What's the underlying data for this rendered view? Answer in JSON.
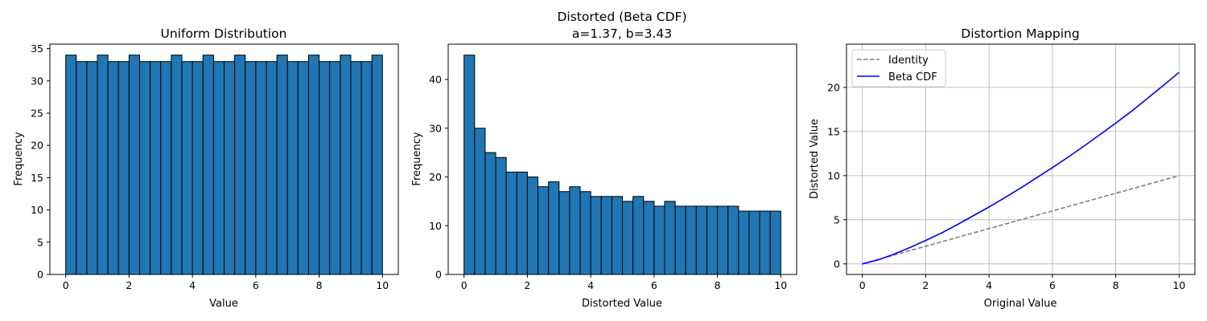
{
  "colors": {
    "bar_fill": "#1f77b4",
    "bar_edge": "#000000",
    "identity_line": "#808080",
    "beta_line": "#0000ff",
    "grid": "#b0b0b0"
  },
  "chart_data": [
    {
      "type": "bar",
      "title": "Uniform Distribution",
      "subtitle": "",
      "xlabel": "Value",
      "ylabel": "Frequency",
      "xlim": [
        -0.5,
        10.5
      ],
      "ylim": [
        0,
        35.7
      ],
      "bin_edges": [
        0,
        0.333,
        0.667,
        1,
        1.333,
        1.667,
        2,
        2.333,
        2.667,
        3,
        3.333,
        3.667,
        4,
        4.333,
        4.667,
        5,
        5.333,
        5.667,
        6,
        6.333,
        6.667,
        7,
        7.333,
        7.667,
        8,
        8.333,
        8.667,
        9,
        9.333,
        9.667,
        10
      ],
      "values": [
        34,
        33,
        33,
        34,
        33,
        33,
        34,
        33,
        33,
        33,
        34,
        33,
        33,
        34,
        33,
        33,
        34,
        33,
        33,
        33,
        34,
        33,
        33,
        34,
        33,
        33,
        34,
        33,
        33,
        34
      ],
      "xticks": [
        0,
        2,
        4,
        6,
        8,
        10
      ],
      "xtick_labels": [
        "0",
        "2",
        "4",
        "6",
        "8",
        "10"
      ],
      "yticks": [
        0,
        5,
        10,
        15,
        20,
        25,
        30,
        35
      ],
      "ytick_labels": [
        "0",
        "5",
        "10",
        "15",
        "20",
        "25",
        "30",
        "35"
      ],
      "grid": false
    },
    {
      "type": "bar",
      "title": "Distorted (Beta CDF)",
      "subtitle": "a=1.37, b=3.43",
      "xlabel": "Distorted Value",
      "ylabel": "Frequency",
      "xlim": [
        -0.5,
        10.5
      ],
      "ylim": [
        0,
        47.25
      ],
      "bin_edges": [
        0,
        0.333,
        0.667,
        1,
        1.333,
        1.667,
        2,
        2.333,
        2.667,
        3,
        3.333,
        3.667,
        4,
        4.333,
        4.667,
        5,
        5.333,
        5.667,
        6,
        6.333,
        6.667,
        7,
        7.333,
        7.667,
        8,
        8.333,
        8.667,
        9,
        9.333,
        9.667,
        10
      ],
      "values": [
        45,
        30,
        25,
        24,
        21,
        21,
        20,
        18,
        19,
        17,
        18,
        17,
        16,
        16,
        16,
        15,
        16,
        15,
        14,
        15,
        14,
        14,
        14,
        14,
        14,
        14,
        13,
        13,
        13,
        13
      ],
      "xticks": [
        0,
        2,
        4,
        6,
        8,
        10
      ],
      "xtick_labels": [
        "0",
        "2",
        "4",
        "6",
        "8",
        "10"
      ],
      "yticks": [
        0,
        10,
        20,
        30,
        40
      ],
      "ytick_labels": [
        "0",
        "10",
        "20",
        "30",
        "40"
      ],
      "grid": false
    },
    {
      "type": "line",
      "title": "Distortion Mapping",
      "subtitle": "",
      "xlabel": "Original Value",
      "ylabel": "Distorted Value",
      "xlim": [
        -0.5,
        10.5
      ],
      "ylim": [
        -1.2,
        24.9
      ],
      "xticks": [
        0,
        2,
        4,
        6,
        8,
        10
      ],
      "xtick_labels": [
        "0",
        "2",
        "4",
        "6",
        "8",
        "10"
      ],
      "yticks": [
        0,
        5,
        10,
        15,
        20
      ],
      "ytick_labels": [
        "0",
        "5",
        "10",
        "15",
        "20"
      ],
      "grid": true,
      "legend_position": "top-left",
      "series": [
        {
          "name": "Identity",
          "style": "dashed",
          "x": [
            0,
            10
          ],
          "y": [
            0,
            10
          ]
        },
        {
          "name": "Beta CDF",
          "style": "solid",
          "x": [
            0,
            0.5,
            1,
            1.5,
            2,
            2.5,
            3,
            3.5,
            4,
            4.5,
            5,
            5.5,
            6,
            6.5,
            7,
            7.5,
            8,
            8.5,
            9,
            9.5,
            10
          ],
          "y": [
            0,
            0.45,
            1.1,
            1.85,
            2.65,
            3.5,
            4.45,
            5.45,
            6.45,
            7.5,
            8.6,
            9.75,
            10.9,
            12.1,
            13.35,
            14.65,
            15.95,
            17.3,
            18.75,
            20.2,
            21.7
          ]
        }
      ]
    }
  ]
}
